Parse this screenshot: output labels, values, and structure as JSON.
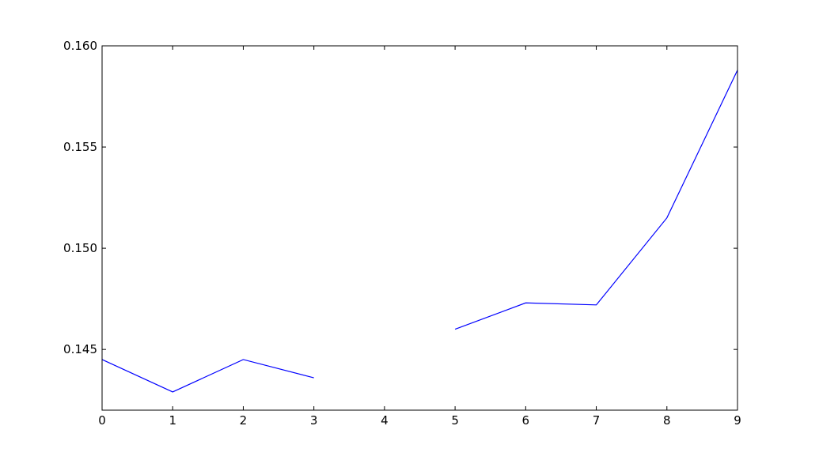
{
  "chart_data": {
    "type": "line",
    "x": [
      0,
      1,
      2,
      3,
      4,
      5,
      6,
      7,
      8,
      9
    ],
    "series": [
      {
        "values": [
          0.1445,
          0.1429,
          0.1445,
          0.1436,
          null,
          0.146,
          0.1473,
          0.1472,
          0.1515,
          0.1588
        ],
        "color": "#0000ff"
      }
    ],
    "xlim": [
      0,
      9
    ],
    "ylim": [
      0.142,
      0.16
    ],
    "xticks": [
      0,
      1,
      2,
      3,
      4,
      5,
      6,
      7,
      8,
      9
    ],
    "xtick_labels": [
      "0",
      "1",
      "2",
      "3",
      "4",
      "5",
      "6",
      "7",
      "8",
      "9"
    ],
    "yticks": [
      0.145,
      0.15,
      0.155,
      0.16
    ],
    "ytick_labels": [
      "0.145",
      "0.150",
      "0.155",
      "0.160"
    ],
    "title": "",
    "xlabel": "",
    "ylabel": "",
    "grid": false,
    "legend": "none"
  }
}
